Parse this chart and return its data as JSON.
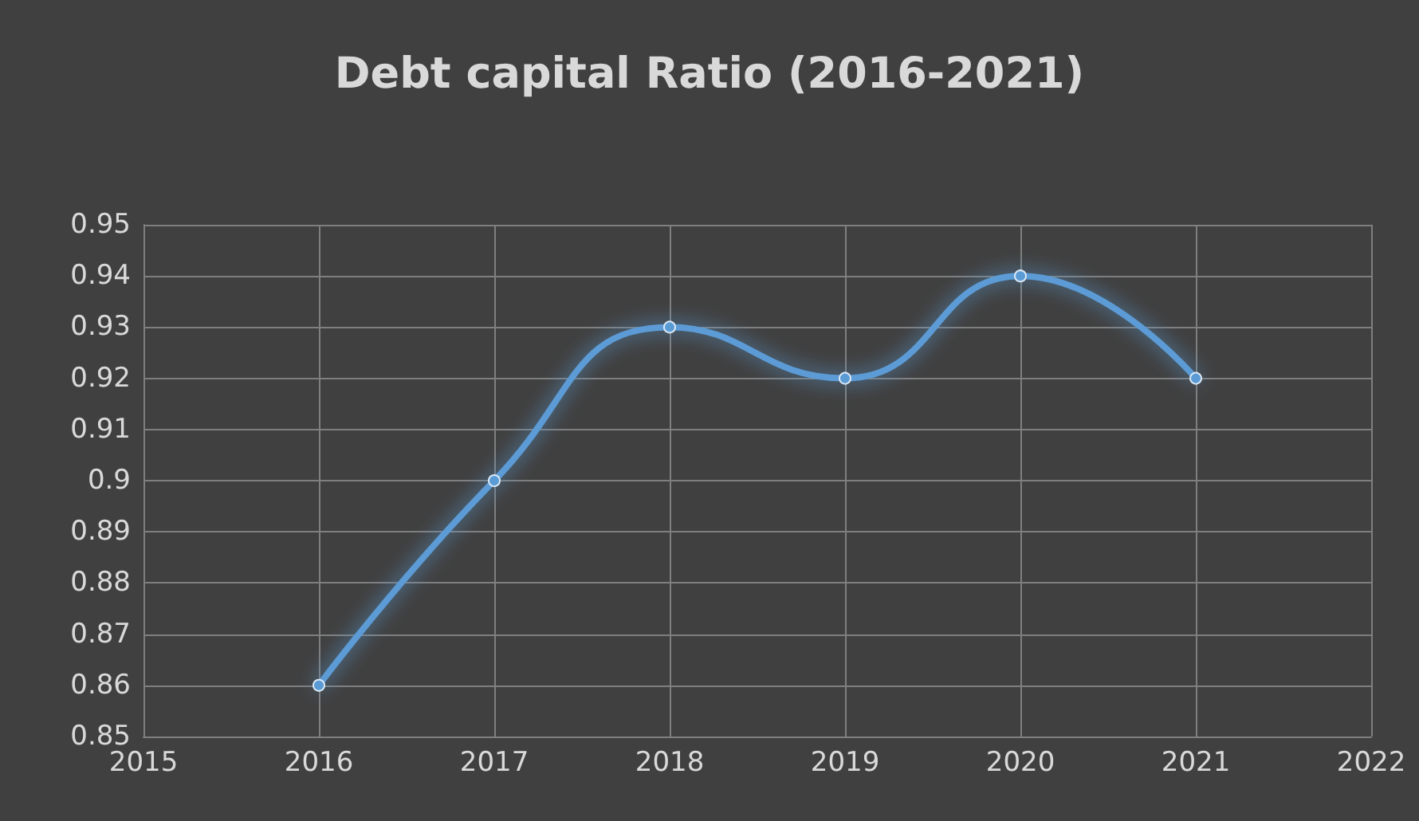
{
  "chart_data": {
    "type": "line",
    "title": "Debt capital Ratio (2016-2021)",
    "x": [
      2016,
      2017,
      2018,
      2019,
      2020,
      2021
    ],
    "series": [
      {
        "color": "#5b9bd5",
        "values": [
          0.86,
          0.9,
          0.93,
          0.92,
          0.94,
          0.92
        ]
      }
    ],
    "xlim": [
      2015,
      2022
    ],
    "xticks": [
      2015,
      2016,
      2017,
      2018,
      2019,
      2020,
      2021,
      2022
    ],
    "ylim": [
      0.85,
      0.95
    ],
    "yticks": [
      0.85,
      0.86,
      0.87,
      0.88,
      0.89,
      0.9,
      0.91,
      0.92,
      0.93,
      0.94,
      0.95
    ],
    "grid": true,
    "marker": "circle",
    "line_style": "solid"
  }
}
